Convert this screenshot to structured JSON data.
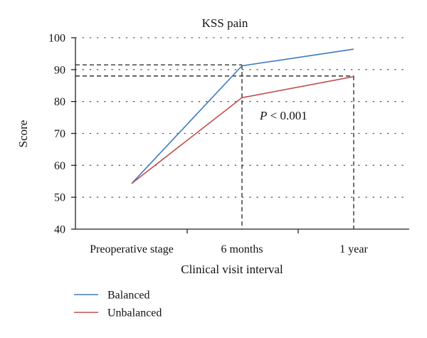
{
  "chart_data": {
    "type": "line",
    "title": "KSS pain",
    "xlabel": "Clinical visit interval",
    "ylabel": "Score",
    "categories": [
      "Preoperative stage",
      "6 months",
      "1 year"
    ],
    "ylim": [
      40,
      100
    ],
    "yticks": [
      40,
      50,
      60,
      70,
      80,
      90,
      100
    ],
    "grid": true,
    "legend_position": "bottom-left",
    "series": [
      {
        "name": "Balanced",
        "values": [
          54.3,
          91.2,
          96.4
        ],
        "color": "#3f7bbf"
      },
      {
        "name": "Unbalanced",
        "values": [
          54.3,
          81.2,
          87.8
        ],
        "color": "#c0504d"
      }
    ],
    "reference_levels": [
      91.5,
      88.0
    ],
    "annotation": {
      "symbol": "P",
      "text": " < 0.001"
    }
  }
}
